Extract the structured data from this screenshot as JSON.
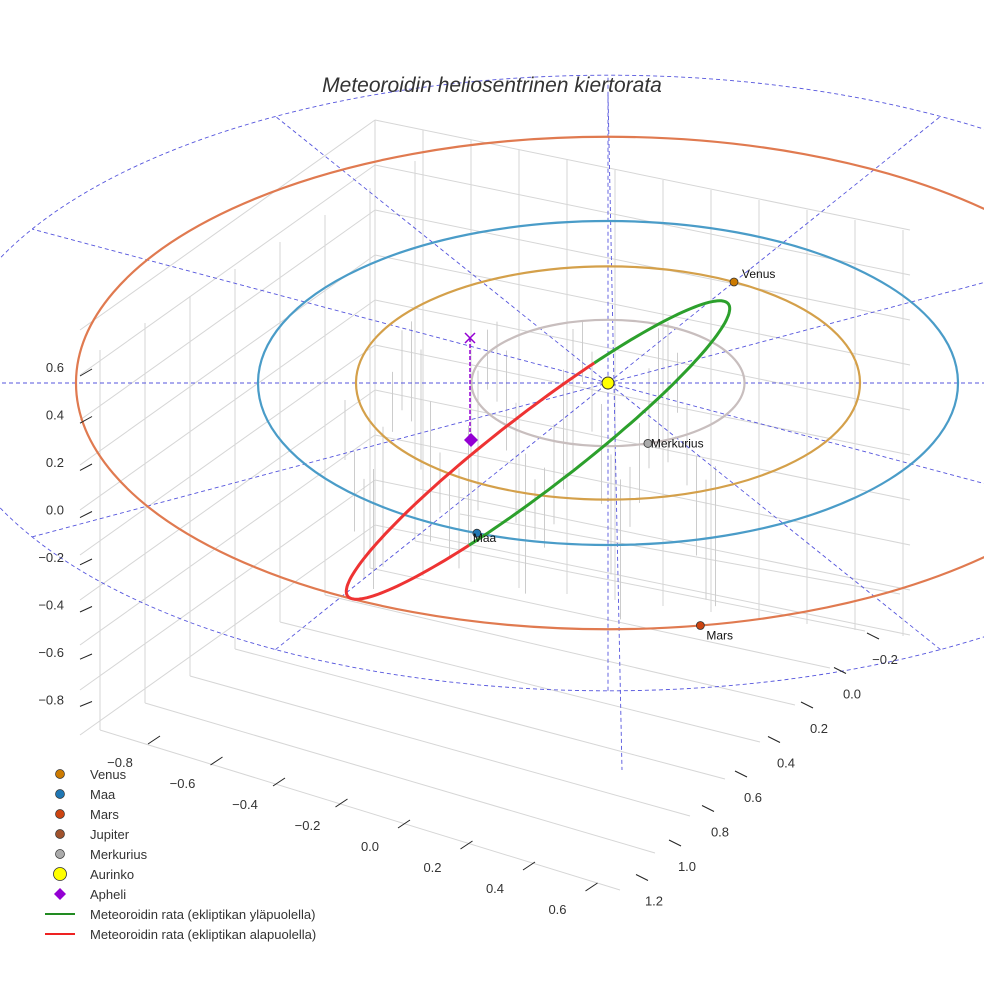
{
  "chart_data": {
    "type": "line",
    "projection": "3d",
    "title": "Meteoroidin heliosentrinen kiertorata",
    "x_ticks": [
      "−0.8",
      "−0.6",
      "−0.4",
      "−0.2",
      "0.0",
      "0.2",
      "0.4",
      "0.6"
    ],
    "y_ticks": [
      "−0.2",
      "0.0",
      "0.2",
      "0.4",
      "0.6",
      "0.8",
      "1.0",
      "1.2"
    ],
    "z_ticks": [
      "0.6",
      "0.4",
      "0.2",
      "0.0",
      "−0.2",
      "−0.4",
      "−0.6",
      "−0.8"
    ],
    "sun": {
      "name": "Aurinko",
      "color": "#ffff00"
    },
    "planets": [
      {
        "name": "Venus",
        "orbit_au": 0.72,
        "angle_deg": -60,
        "color": "#cc7a00",
        "orbit_color": "#d4a04a"
      },
      {
        "name": "Maa",
        "orbit_au": 1.0,
        "angle_deg": 112,
        "color": "#1f77b4",
        "orbit_color": "#4a9cc8"
      },
      {
        "name": "Mars",
        "orbit_au": 1.52,
        "angle_deg": 80,
        "color": "#cc4411",
        "orbit_color": "#e07a50"
      },
      {
        "name": "Merkurius",
        "orbit_au": 0.39,
        "angle_deg": 73,
        "color": "#aaaaaa",
        "orbit_color": "#c8bebe"
      }
    ],
    "meteoroid": {
      "above_color": "#2ca02c",
      "below_color": "#ee3333",
      "aphelion_color": "#9400d3"
    },
    "legend": [
      {
        "label": "Venus",
        "marker": "circle",
        "color": "#cc7a00"
      },
      {
        "label": "Maa",
        "marker": "circle",
        "color": "#1f77b4"
      },
      {
        "label": "Mars",
        "marker": "circle",
        "color": "#cc4411"
      },
      {
        "label": "Jupiter",
        "marker": "circle",
        "color": "#a0522d"
      },
      {
        "label": "Merkurius",
        "marker": "circle",
        "color": "#aaaaaa"
      },
      {
        "label": "Aurinko",
        "marker": "circle-large",
        "color": "#ffff00"
      },
      {
        "label": "Apheli",
        "marker": "diamond",
        "color": "#9400d3"
      },
      {
        "label": "Meteoroidin rata (ekliptikan yläpuolella)",
        "marker": "line",
        "color": "#228b22"
      },
      {
        "label": "Meteoroidin rata (ekliptikan alapuolella)",
        "marker": "line",
        "color": "#ee2222"
      }
    ]
  }
}
